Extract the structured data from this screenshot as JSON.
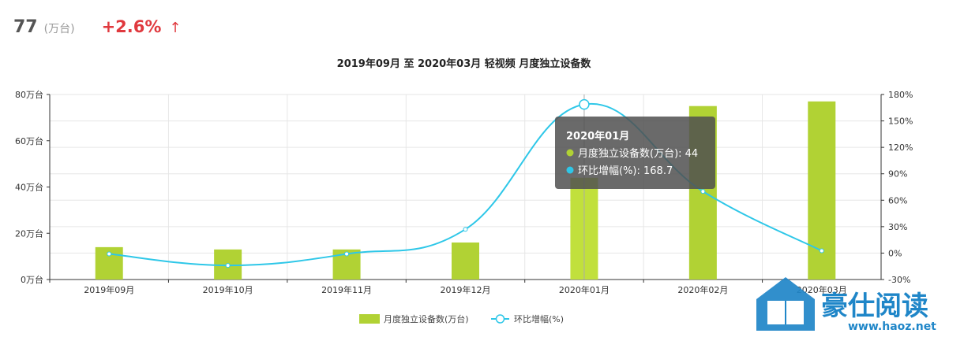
{
  "kpi": {
    "value": "77",
    "unit": "(万台)",
    "change": "+2.6%",
    "arrow": "↑"
  },
  "chart_data": {
    "type": "bar+line",
    "title": "2019年09月 至 2020年03月 轻视频 月度独立设备数",
    "categories": [
      "2019年09月",
      "2019年10月",
      "2019年11月",
      "2019年12月",
      "2020年01月",
      "2020年02月",
      "2020年03月"
    ],
    "series": [
      {
        "name": "月度独立设备数(万台)",
        "type": "bar",
        "axis": "left",
        "color": "#b1d234",
        "values": [
          14,
          13,
          13,
          16,
          44,
          75,
          77
        ]
      },
      {
        "name": "环比增幅(%)",
        "type": "line",
        "axis": "right",
        "color": "#2ec7e8",
        "values": [
          -1,
          -14,
          -1,
          27,
          168.7,
          70,
          2.6
        ]
      }
    ],
    "y_left": {
      "min": 0,
      "max": 80,
      "ticks": [
        "0万台",
        "20万台",
        "40万台",
        "60万台",
        "80万台"
      ]
    },
    "y_right": {
      "min": -30,
      "max": 180,
      "ticks": [
        "-30%",
        "0%",
        "30%",
        "60%",
        "90%",
        "120%",
        "150%",
        "180%"
      ]
    },
    "grid": true,
    "legend": "bottom-center",
    "tooltip": {
      "title": "2020年01月",
      "row1": "月度独立设备数(万台): 44",
      "row2": "环比增幅(%): 168.7",
      "active_index": 4
    }
  },
  "watermark": {
    "text": "豪仕阅读",
    "url": "www.haoz.net"
  }
}
